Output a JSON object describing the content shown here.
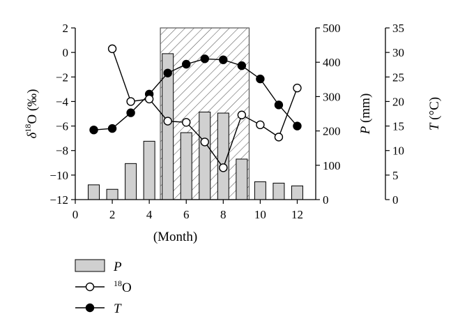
{
  "chart_data": {
    "type": "bar",
    "x": [
      1,
      2,
      3,
      4,
      5,
      6,
      7,
      8,
      9,
      10,
      11,
      12
    ],
    "xlim": [
      0,
      13
    ],
    "xticks": [
      "0",
      "2",
      "4",
      "6",
      "8",
      "10",
      "12"
    ],
    "xlabel": "(Month)",
    "highlight_months": [
      5,
      9
    ],
    "axes": {
      "left": {
        "label_main": "δ",
        "label_sup": "18",
        "label_rest": "O (‰)",
        "lim": [
          -12,
          2
        ],
        "ticks": [
          "2",
          "0",
          "−2",
          "−4",
          "−6",
          "−8",
          "−10",
          "−12"
        ]
      },
      "right1": {
        "label_main": "P",
        "label_rest": " (mm)",
        "lim": [
          0,
          500
        ],
        "ticks": [
          "500",
          "400",
          "300",
          "200",
          "100",
          "0"
        ]
      },
      "right2": {
        "label_main": "T",
        "label_rest": " (°C)",
        "lim": [
          0,
          35
        ],
        "ticks": [
          "35",
          "30",
          "25",
          "20",
          "15",
          "10",
          "5",
          "0"
        ]
      }
    },
    "series": [
      {
        "name": "P",
        "kind": "bar",
        "axis": "right1",
        "values": [
          43,
          30,
          105,
          170,
          425,
          195,
          255,
          252,
          118,
          52,
          48,
          40
        ]
      },
      {
        "name": "18O",
        "name_sup": "18",
        "name_rest": "O",
        "kind": "line-open",
        "axis": "left",
        "values": [
          null,
          0.3,
          -4.0,
          -3.8,
          -5.6,
          -5.7,
          -7.3,
          -9.4,
          -5.1,
          -5.9,
          -6.9,
          -2.9
        ]
      },
      {
        "name": "T",
        "kind": "line-filled",
        "axis": "right2",
        "values": [
          14.2,
          14.5,
          17.7,
          21.5,
          25.8,
          27.6,
          28.7,
          28.5,
          27.3,
          24.6,
          19.3,
          15.0
        ]
      }
    ],
    "legend": [
      {
        "key": "P",
        "symbol": "bar",
        "main": "P",
        "sup": "",
        "rest": ""
      },
      {
        "key": "18O",
        "symbol": "open",
        "main": "",
        "sup": "18",
        "rest": "O"
      },
      {
        "key": "T",
        "symbol": "filled",
        "main": "T",
        "sup": "",
        "rest": ""
      }
    ],
    "legend_position": "bottom-left",
    "colors": {
      "bar_fill": "#d0d0d0",
      "line": "#000000",
      "hatch": "#555555"
    }
  }
}
